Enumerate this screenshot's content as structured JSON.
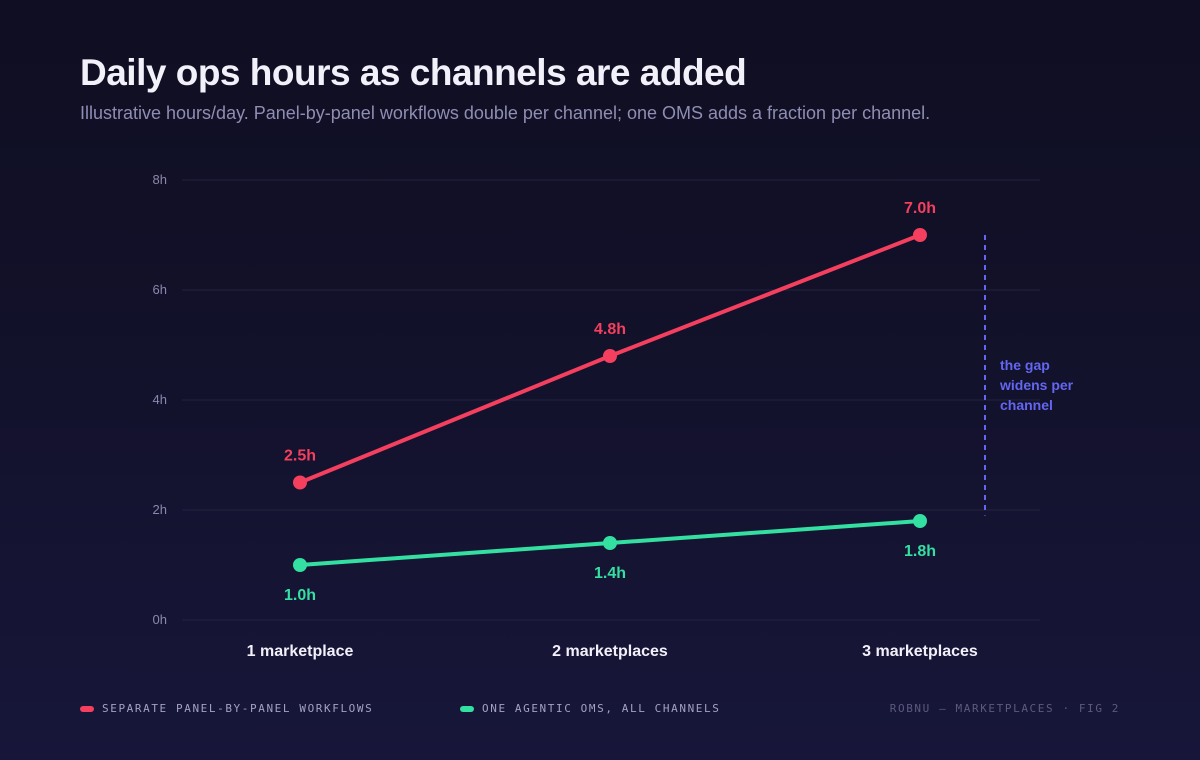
{
  "header": {
    "title": "Daily ops hours as channels are added",
    "subtitle": "Illustrative hours/day. Panel-by-panel workflows double per channel; one OMS adds a fraction per channel."
  },
  "chart_data": {
    "type": "line",
    "title": "Daily ops hours as channels are added",
    "subtitle": "Illustrative hours/day. Panel-by-panel workflows double per channel; one OMS adds a fraction per channel.",
    "categories": [
      "1 marketplace",
      "2 marketplaces",
      "3 marketplaces"
    ],
    "ylim": [
      0,
      8
    ],
    "y_ticks": [
      {
        "value": 0,
        "label": "0h"
      },
      {
        "value": 2,
        "label": "2h"
      },
      {
        "value": 4,
        "label": "4h"
      },
      {
        "value": 6,
        "label": "6h"
      },
      {
        "value": 8,
        "label": "8h"
      }
    ],
    "grid": true,
    "legend_position": "bottom-left",
    "series": [
      {
        "name": "SEPARATE PANEL-BY-PANEL WORKFLOWS",
        "color": "#f43f5e",
        "values": [
          2.5,
          4.8,
          7.0
        ],
        "labels": [
          "2.5h",
          "4.8h",
          "7.0h"
        ],
        "label_position": "above"
      },
      {
        "name": "ONE AGENTIC OMS, ALL CHANNELS",
        "color": "#34e0a1",
        "values": [
          1.0,
          1.4,
          1.8
        ],
        "labels": [
          "1.0h",
          "1.4h",
          "1.8h"
        ],
        "label_position": "below"
      }
    ],
    "annotation": {
      "text_lines": [
        "the gap",
        "widens per",
        "channel"
      ],
      "color": "#6366f1",
      "from_value": 7.0,
      "to_value": 1.9
    }
  },
  "footer": {
    "credit": "ROBNU — MARKETPLACES · FIG 2"
  }
}
